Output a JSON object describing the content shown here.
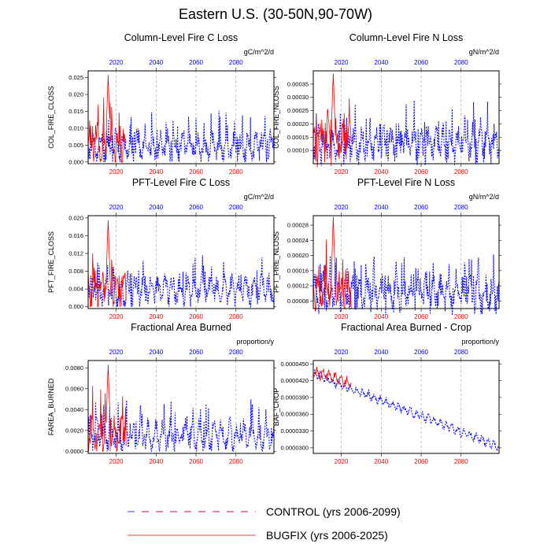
{
  "figure": {
    "title": "Eastern U.S. (30-50N,90-70W)",
    "legend": [
      {
        "label": "CONTROL (yrs 2006-2099)",
        "color": "#0000ff",
        "color2": "#ff0000",
        "style": "dashed"
      },
      {
        "label": "BUGFIX (yrs 2006-2025)",
        "color": "#ff0000",
        "style": "solid"
      }
    ],
    "colors": {
      "control": "#0000ff",
      "bugfix": "#ff0000",
      "grid": "#999999"
    }
  },
  "chart_data": [
    {
      "type": "line",
      "title": "Column-Level Fire C Loss",
      "units": "gC/m^2/d",
      "ylabel": "COL_FIRE_CLOSS",
      "xlim": [
        2006,
        2099
      ],
      "ylim": [
        -0.0005,
        0.027
      ],
      "yticks": [
        "0.000",
        "0.005",
        "0.010",
        "0.015",
        "0.020",
        "0.025"
      ],
      "ytick_values": [
        0.0,
        0.005,
        0.01,
        0.015,
        0.02,
        0.025
      ],
      "xticks_top": [
        "2020",
        "2040",
        "2060",
        "2080"
      ],
      "xticks_bottom": [
        "2020",
        "2040",
        "2060",
        "2080"
      ],
      "xtick_values": [
        2020,
        2040,
        2060,
        2080
      ],
      "series": [
        {
          "name": "CONTROL",
          "base": 0.0045,
          "amp": 0.0048,
          "seed": 11,
          "x_start": 2006,
          "x_end": 2099
        },
        {
          "name": "BUGFIX",
          "base": 0.0055,
          "amp": 0.0062,
          "seed": 21,
          "x_start": 2006,
          "x_end": 2025,
          "peak_x": 2016,
          "peak_y": 0.0258
        }
      ]
    },
    {
      "type": "line",
      "title": "Column-Level Fire N Loss",
      "units": "gN/m^2/d",
      "ylabel": "COL_FIRE_NLOSS",
      "xlim": [
        2006,
        2099
      ],
      "ylim": [
        5e-05,
        0.0004
      ],
      "yticks": [
        "0.00010",
        "0.00015",
        "0.00020",
        "0.00025",
        "0.00030",
        "0.00035"
      ],
      "ytick_values": [
        0.0001,
        0.00015,
        0.0002,
        0.00025,
        0.0003,
        0.00035
      ],
      "xticks_top": [
        "2020",
        "2040",
        "2060",
        "2080"
      ],
      "xticks_bottom": [
        "2020",
        "2040",
        "2060",
        "2080"
      ],
      "xtick_values": [
        2020,
        2040,
        2060,
        2080
      ],
      "series": [
        {
          "name": "CONTROL",
          "base": 0.000125,
          "amp": 7.2e-05,
          "seed": 12,
          "x_start": 2006,
          "x_end": 2099
        },
        {
          "name": "BUGFIX",
          "base": 0.00014,
          "amp": 9e-05,
          "seed": 22,
          "x_start": 2006,
          "x_end": 2025,
          "peak_x": 2016,
          "peak_y": 0.00039
        }
      ]
    },
    {
      "type": "line",
      "title": "PFT-Level Fire C Loss",
      "units": "gC/m^2/d",
      "ylabel": "PFT_FIRE_CLOSS",
      "xlim": [
        2006,
        2099
      ],
      "ylim": [
        -0.0004,
        0.0205
      ],
      "yticks": [
        "0.000",
        "0.004",
        "0.008",
        "0.012",
        "0.016",
        "0.020"
      ],
      "ytick_values": [
        0.0,
        0.004,
        0.008,
        0.012,
        0.016,
        0.02
      ],
      "xticks_top": [
        "2020",
        "2040",
        "2060",
        "2080"
      ],
      "xticks_bottom": [
        "2020",
        "2040",
        "2060",
        "2080"
      ],
      "xtick_values": [
        2020,
        2040,
        2060,
        2080
      ],
      "series": [
        {
          "name": "CONTROL",
          "base": 0.0036,
          "amp": 0.0036,
          "seed": 13,
          "x_start": 2006,
          "x_end": 2099
        },
        {
          "name": "BUGFIX",
          "base": 0.0042,
          "amp": 0.0048,
          "seed": 23,
          "x_start": 2006,
          "x_end": 2025,
          "peak_x": 2016,
          "peak_y": 0.0195
        }
      ]
    },
    {
      "type": "line",
      "title": "PFT-Level Fire N Loss",
      "units": "gN/m^2/d",
      "ylabel": "PFT_FIRE_NLOSS",
      "xlim": [
        2006,
        2099
      ],
      "ylim": [
        6e-05,
        0.000305
      ],
      "yticks": [
        "0.00008",
        "0.00012",
        "0.00016",
        "0.00020",
        "0.00024",
        "0.00028"
      ],
      "ytick_values": [
        8e-05,
        0.00012,
        0.00016,
        0.0002,
        0.00024,
        0.00028
      ],
      "xticks_top": [
        "2020",
        "2040",
        "2060",
        "2080"
      ],
      "xticks_bottom": [
        "2020",
        "2040",
        "2060",
        "2080"
      ],
      "xtick_values": [
        2020,
        2040,
        2060,
        2080
      ],
      "series": [
        {
          "name": "CONTROL",
          "base": 0.0001,
          "amp": 5e-05,
          "seed": 14,
          "x_start": 2006,
          "x_end": 2099
        },
        {
          "name": "BUGFIX",
          "base": 0.00011,
          "amp": 6e-05,
          "seed": 24,
          "x_start": 2006,
          "x_end": 2025,
          "peak_x": 2016,
          "peak_y": 0.000302
        }
      ]
    },
    {
      "type": "line",
      "title": "Fractional Area Burned",
      "units": "proportion/y",
      "ylabel": "FAREA_BURNED",
      "xlim": [
        2006,
        2099
      ],
      "ylim": [
        -0.0002,
        0.0087
      ],
      "yticks": [
        "0.0000",
        "0.0020",
        "0.0040",
        "0.0060",
        "0.0080"
      ],
      "ytick_values": [
        0.0,
        0.002,
        0.004,
        0.006,
        0.008
      ],
      "xticks_top": [
        "2020",
        "2040",
        "2060",
        "2080"
      ],
      "xticks_bottom": [
        "2020",
        "2040",
        "2060",
        "2080"
      ],
      "xtick_values": [
        2020,
        2040,
        2060,
        2080
      ],
      "series": [
        {
          "name": "CONTROL",
          "base": 0.0015,
          "amp": 0.0016,
          "seed": 15,
          "x_start": 2006,
          "x_end": 2099
        },
        {
          "name": "BUGFIX",
          "base": 0.0018,
          "amp": 0.002,
          "seed": 25,
          "x_start": 2006,
          "x_end": 2025,
          "peak_x": 2016,
          "peak_y": 0.0083
        }
      ]
    },
    {
      "type": "line",
      "title": "Fractional Area Burned - Crop",
      "units": "proportion/y",
      "ylabel": "BAF_CROP",
      "xlim": [
        2006,
        2099
      ],
      "ylim": [
        2.9e-05,
        4.56e-05
      ],
      "yticks": [
        "0.0000300",
        "0.0000330",
        "0.0000360",
        "0.0000390",
        "0.0000420",
        "0.0000450"
      ],
      "ytick_values": [
        3e-05,
        3.3e-05,
        3.6e-05,
        3.9e-05,
        4.2e-05,
        4.5e-05
      ],
      "xticks_top": [
        "2020",
        "2040",
        "2060",
        "2080"
      ],
      "xticks_bottom": [
        "2020",
        "2040",
        "2060",
        "2080"
      ],
      "xtick_values": [
        2020,
        2040,
        2060,
        2080
      ],
      "series": [
        {
          "name": "CONTROL",
          "trend_start": 4.32e-05,
          "trend_end": 3.02e-05,
          "amp": 9e-07,
          "seed": 16,
          "x_start": 2006,
          "x_end": 2099
        },
        {
          "name": "BUGFIX",
          "trend_start": 4.37e-05,
          "trend_end": 4.15e-05,
          "amp": 1.1e-06,
          "seed": 26,
          "x_start": 2006,
          "x_end": 2025
        }
      ]
    }
  ]
}
